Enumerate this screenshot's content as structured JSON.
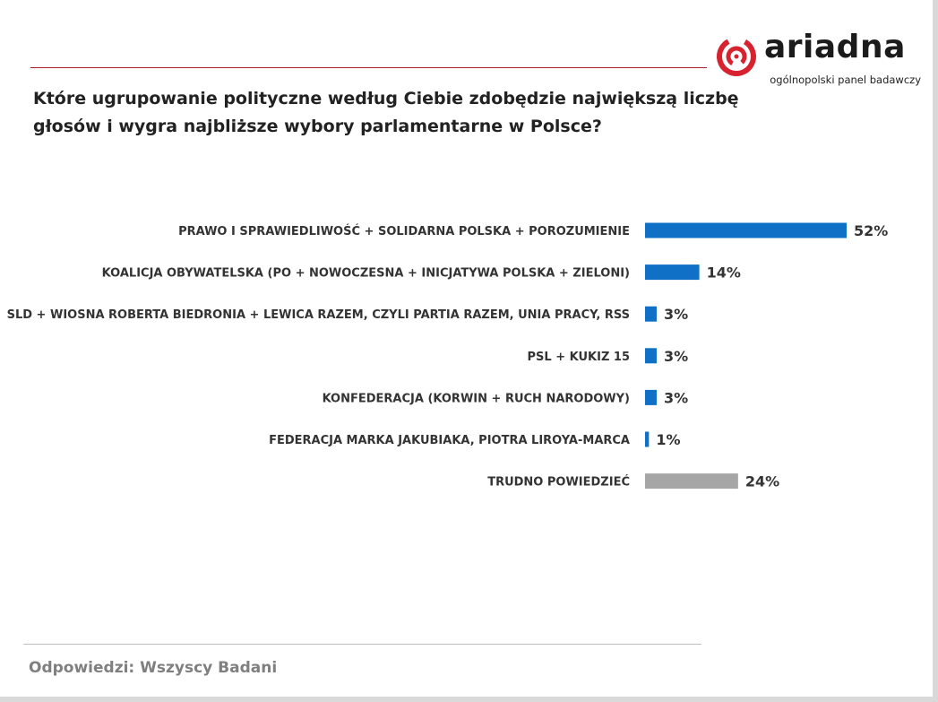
{
  "header": {
    "question": "Które ugrupowanie polityczne według Ciebie zdobędzie największą liczbę głosów i wygra najbliższe wybory parlamentarne w Polsce?",
    "logo": {
      "wordmark": "ariadna",
      "tagline": "ogólnopolski panel badawczy",
      "brand_color": "#d6232f"
    }
  },
  "footer": {
    "note": "Odpowiedzi: Wszyscy Badani"
  },
  "colors": {
    "primary_bar": "#1070c6",
    "undecided_bar": "#a6a6a6",
    "accent_rule": "#b01e2e"
  },
  "chart_data": {
    "type": "bar",
    "orientation": "horizontal",
    "title": "",
    "xlabel": "",
    "ylabel": "",
    "xlim": [
      0,
      52
    ],
    "grid": false,
    "legend": "none",
    "value_suffix": "%",
    "categories": [
      "PRAWO I SPRAWIEDLIWOŚĆ  + SOLIDARNA POLSKA + POROZUMIENIE",
      "KOALICJA OBYWATELSKA  (PO + NOWOCZESNA + INICJATYWA POLSKA + ZIELONI)",
      "SLD + WIOSNA ROBERTA BIEDRONIA + LEWICA RAZEM, CZYLI PARTIA RAZEM, UNIA PRACY, RSS",
      "PSL + KUKIZ 15",
      "KONFEDERACJA (KORWIN + RUCH NARODOWY)",
      "FEDERACJA MARKA JAKUBIAKA, PIOTRA LIROYA-MARCA",
      "TRUDNO POWIEDZIEĆ"
    ],
    "values": [
      52,
      14,
      3,
      3,
      3,
      1,
      24
    ],
    "value_labels": [
      "52%",
      "14%",
      "3%",
      "3%",
      "3%",
      "1%",
      "24%"
    ],
    "bar_colors": [
      "#1070c6",
      "#1070c6",
      "#1070c6",
      "#1070c6",
      "#1070c6",
      "#1070c6",
      "#a6a6a6"
    ]
  }
}
